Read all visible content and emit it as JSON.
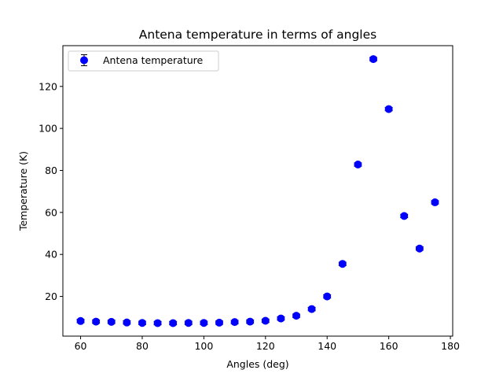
{
  "chart_data": {
    "type": "scatter",
    "title": "Antena temperature in terms of angles",
    "xlabel": "Angles (deg)",
    "ylabel": "Temperature (K)",
    "xlim": [
      54.25,
      180.75
    ],
    "ylim": [
      1.1,
      139.4
    ],
    "xticks": [
      60,
      80,
      100,
      120,
      140,
      160,
      180
    ],
    "yticks": [
      20,
      40,
      60,
      80,
      100,
      120
    ],
    "grid": false,
    "legend_position": "top-left",
    "series": [
      {
        "name": "Antena temperature",
        "color": "#0000ff",
        "errorbar_color": "#000000",
        "marker": "circle",
        "x": [
          60,
          65,
          70,
          75,
          80,
          85,
          90,
          95,
          100,
          105,
          110,
          115,
          120,
          125,
          130,
          135,
          140,
          145,
          150,
          155,
          160,
          165,
          170,
          175
        ],
        "y": [
          8.3,
          8.0,
          7.9,
          7.6,
          7.4,
          7.3,
          7.3,
          7.4,
          7.4,
          7.5,
          7.8,
          8.0,
          8.4,
          9.5,
          10.8,
          14.0,
          20.0,
          35.5,
          82.8,
          133.0,
          109.2,
          58.3,
          42.8,
          64.8
        ],
        "yerr": [
          0.8,
          0.8,
          0.8,
          0.8,
          0.8,
          0.8,
          0.8,
          0.8,
          0.8,
          0.8,
          0.8,
          0.8,
          0.8,
          0.8,
          0.8,
          0.8,
          0.8,
          0.8,
          0.8,
          0.8,
          0.8,
          0.8,
          0.8,
          0.8
        ]
      }
    ]
  }
}
